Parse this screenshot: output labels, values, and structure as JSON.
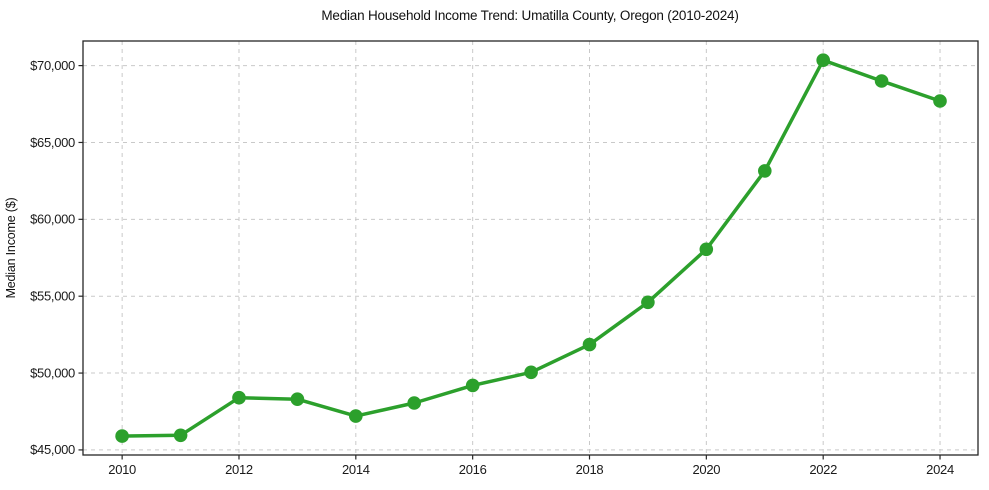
{
  "chart_data": {
    "type": "line",
    "title": "Median Household Income Trend: Umatilla County, Oregon (2010-2024)",
    "xlabel": "",
    "ylabel": "Median Income ($)",
    "x": [
      2010,
      2011,
      2012,
      2013,
      2014,
      2015,
      2016,
      2017,
      2018,
      2019,
      2020,
      2021,
      2022,
      2023,
      2024
    ],
    "values": [
      45900,
      45950,
      48400,
      48300,
      47200,
      48050,
      49200,
      50050,
      51850,
      54600,
      58050,
      63150,
      70350,
      69000,
      67700
    ],
    "series_name": "Median Household Income",
    "xticks": [
      2010,
      2012,
      2014,
      2016,
      2018,
      2020,
      2022,
      2024
    ],
    "yticks": [
      45000,
      50000,
      55000,
      60000,
      65000,
      70000
    ],
    "ytick_labels": [
      "$45,000",
      "$50,000",
      "$55,000",
      "$60,000",
      "$65,000",
      "$70,000"
    ],
    "xlim": [
      2009.33,
      2024.65
    ],
    "ylim": [
      44670,
      71600
    ],
    "grid": true,
    "grid_style": "dashed",
    "legend": "none",
    "line_color": "#2ca02c",
    "marker": "circle",
    "background_color": "#ffffff",
    "grid_color": "#c9c9c9",
    "axis_color": "#262626",
    "text_color": "#1a1a1a"
  }
}
